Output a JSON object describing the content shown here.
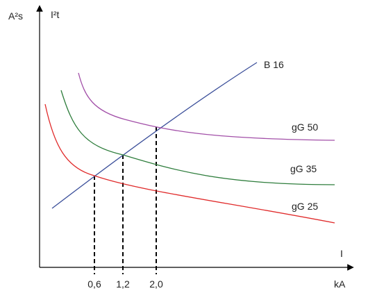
{
  "axes": {
    "y_unit": "A²s",
    "y_label": "I²t",
    "x_label": "I",
    "x_unit": "kA"
  },
  "ticks": [
    "0,6",
    "1,2",
    "2,0"
  ],
  "curves": [
    "B 16",
    "gG 50",
    "gG 35",
    "gG 25"
  ]
}
